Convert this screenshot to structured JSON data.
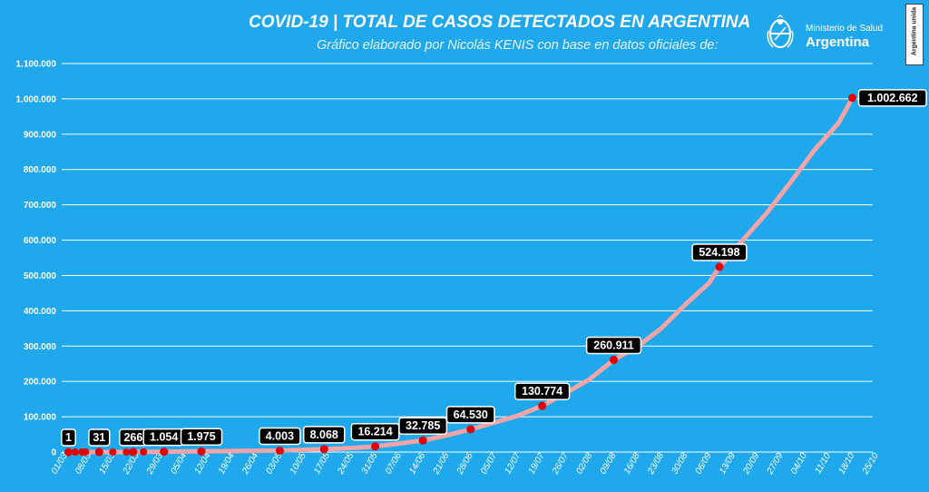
{
  "header": {
    "title": "COVID-19  |  TOTAL DE CASOS DETECTADOS EN ARGENTINA",
    "subtitle": "Gráfico elaborado por Nicolás KENIS con base en datos oficiales de:",
    "ministry_line1": "Ministerio de Salud",
    "ministry_line2": "Argentina",
    "side_badge": "Argentina unida"
  },
  "colors": {
    "background": "#1fa8ec",
    "grid": "#ffffff",
    "line": "#f2a4a8",
    "marker": "#e00000",
    "label_bg": "#000000",
    "label_text": "#ffffff"
  },
  "chart_data": {
    "type": "line",
    "title": "COVID-19  |  TOTAL DE CASOS DETECTADOS EN ARGENTINA",
    "xlabel": "",
    "ylabel": "",
    "ylim": [
      0,
      1100000
    ],
    "yticks": [
      0,
      100000,
      200000,
      300000,
      400000,
      500000,
      600000,
      700000,
      800000,
      900000,
      1000000,
      1100000
    ],
    "ytick_labels": [
      "0",
      "100.000",
      "200.000",
      "300.000",
      "400.000",
      "500.000",
      "600.000",
      "700.000",
      "800.000",
      "900.000",
      "1.000.000",
      "1.100.000"
    ],
    "xtick_labels": [
      "01/03",
      "08/03",
      "15/03",
      "22/03",
      "29/03",
      "05/04",
      "12/04",
      "19/04",
      "26/04",
      "03/05",
      "10/05",
      "17/05",
      "24/05",
      "31/05",
      "07/06",
      "14/06",
      "21/06",
      "28/06",
      "05/07",
      "12/07",
      "19/07",
      "26/07",
      "02/08",
      "09/08",
      "16/08",
      "23/08",
      "30/08",
      "06/09",
      "13/09",
      "20/09",
      "27/09",
      "04/10",
      "11/10",
      "18/10",
      "25/10"
    ],
    "grid": true,
    "series": [
      {
        "points": [
          {
            "x": "03/03",
            "y": 1
          },
          {
            "x": "05/03",
            "y": 2
          },
          {
            "x": "07/03",
            "y": 9
          },
          {
            "x": "08/03",
            "y": 12
          },
          {
            "x": "12/03",
            "y": 31
          },
          {
            "x": "16/03",
            "y": 65
          },
          {
            "x": "20/03",
            "y": 128
          },
          {
            "x": "22/03",
            "y": 266
          },
          {
            "x": "25/03",
            "y": 387
          },
          {
            "x": "31/03",
            "y": 1054
          },
          {
            "x": "08/04",
            "y": 1795
          },
          {
            "x": "11/04",
            "y": 1975
          },
          {
            "x": "20/04",
            "y": 2941
          },
          {
            "x": "04/05",
            "y": 4003
          },
          {
            "x": "17/05",
            "y": 8068
          },
          {
            "x": "27/05",
            "y": 12628
          },
          {
            "x": "01/06",
            "y": 16214
          },
          {
            "x": "07/06",
            "y": 22794
          },
          {
            "x": "15/06",
            "y": 32785
          },
          {
            "x": "21/06",
            "y": 44931
          },
          {
            "x": "29/06",
            "y": 64530
          },
          {
            "x": "06/07",
            "y": 83426
          },
          {
            "x": "13/07",
            "y": 103265
          },
          {
            "x": "20/07",
            "y": 130774
          },
          {
            "x": "27/07",
            "y": 167416
          },
          {
            "x": "03/08",
            "y": 206743
          },
          {
            "x": "10/08",
            "y": 260911
          },
          {
            "x": "17/08",
            "y": 299126
          },
          {
            "x": "24/08",
            "y": 350867
          },
          {
            "x": "31/08",
            "y": 417735
          },
          {
            "x": "07/09",
            "y": 478792
          },
          {
            "x": "10/09",
            "y": 524198
          },
          {
            "x": "17/09",
            "y": 601713
          },
          {
            "x": "24/09",
            "y": 678266
          },
          {
            "x": "01/10",
            "y": 765002
          },
          {
            "x": "08/10",
            "y": 856369
          },
          {
            "x": "15/10",
            "y": 931967
          },
          {
            "x": "19/10",
            "y": 1002662
          }
        ]
      }
    ],
    "annotations": [
      {
        "x": "03/03",
        "y": 1,
        "label": "1"
      },
      {
        "x": "12/03",
        "y": 31,
        "label": "31"
      },
      {
        "x": "22/03",
        "y": 266,
        "label": "266"
      },
      {
        "x": "31/03",
        "y": 1054,
        "label": "1.054"
      },
      {
        "x": "11/04",
        "y": 1975,
        "label": "1.975"
      },
      {
        "x": "04/05",
        "y": 4003,
        "label": "4.003"
      },
      {
        "x": "17/05",
        "y": 8068,
        "label": "8.068"
      },
      {
        "x": "01/06",
        "y": 16214,
        "label": "16.214"
      },
      {
        "x": "15/06",
        "y": 32785,
        "label": "32.785"
      },
      {
        "x": "29/06",
        "y": 64530,
        "label": "64.530"
      },
      {
        "x": "20/07",
        "y": 130774,
        "label": "130.774"
      },
      {
        "x": "10/08",
        "y": 260911,
        "label": "260.911"
      },
      {
        "x": "10/09",
        "y": 524198,
        "label": "524.198"
      },
      {
        "x": "19/10",
        "y": 1002662,
        "label": "1.002.662"
      }
    ],
    "extra_markers": [
      {
        "x": "05/03",
        "y": 2
      },
      {
        "x": "07/03",
        "y": 9
      },
      {
        "x": "08/03",
        "y": 12
      },
      {
        "x": "16/03",
        "y": 65
      },
      {
        "x": "20/03",
        "y": 128
      },
      {
        "x": "25/03",
        "y": 387
      }
    ]
  }
}
